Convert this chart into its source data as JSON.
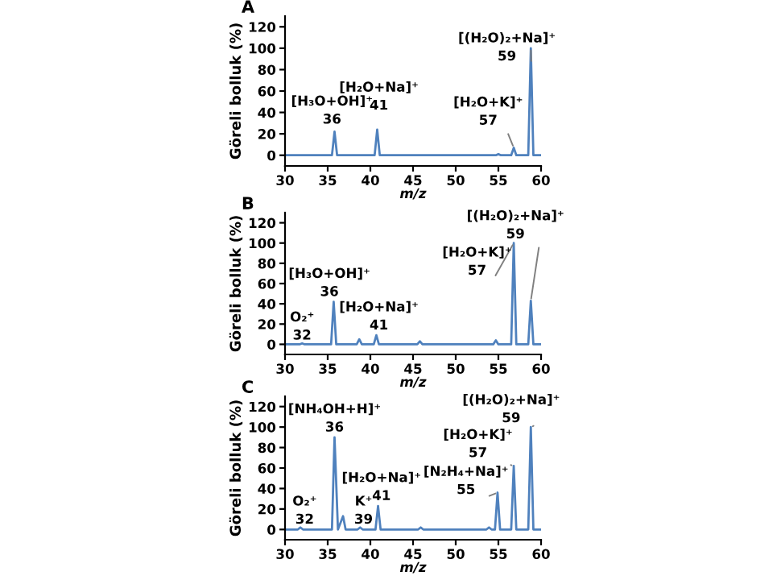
{
  "chart_data": [
    {
      "type": "line",
      "title": "A",
      "xlabel": "m/z",
      "ylabel": "Göreli bolluk (%)",
      "xlim": [
        30,
        60
      ],
      "ylim": [
        -10,
        130
      ],
      "xticks": [
        30,
        35,
        40,
        45,
        50,
        55,
        60
      ],
      "yticks": [
        0,
        20,
        40,
        60,
        80,
        100,
        120
      ],
      "grid": false,
      "legend": false,
      "marker": "none",
      "line_style": "solid",
      "series": [
        {
          "color": "#4f81bd",
          "x": [
            30,
            35.5,
            35.8,
            36.1,
            40.5,
            40.8,
            41.1,
            54.7,
            55,
            55.3,
            56.5,
            56.8,
            57.1,
            58.5,
            58.8,
            59.1,
            60
          ],
          "values": [
            0,
            0,
            22,
            0,
            0,
            24,
            0,
            0,
            1,
            0,
            0,
            7,
            0,
            0,
            100,
            0,
            0
          ]
        }
      ],
      "annotations": [
        {
          "text": "[H₃O+OH]⁺\n36",
          "x": 35.8,
          "y": 22
        },
        {
          "text": "[H₂O+Na]⁺\n41",
          "x": 40.8,
          "y": 24
        },
        {
          "text": "[H₂O+K]⁺\n57",
          "x": 56.8,
          "y": 7
        },
        {
          "text": "[(H₂O)₂+Na]⁺\n59",
          "x": 58.8,
          "y": 100
        }
      ]
    },
    {
      "type": "line",
      "title": "B",
      "xlabel": "m/z",
      "ylabel": "Göreli bolluk (%)",
      "xlim": [
        30,
        60
      ],
      "ylim": [
        -10,
        130
      ],
      "xticks": [
        30,
        35,
        40,
        45,
        50,
        55,
        60
      ],
      "yticks": [
        0,
        20,
        40,
        60,
        80,
        100,
        120
      ],
      "grid": false,
      "legend": false,
      "marker": "none",
      "line_style": "solid",
      "series": [
        {
          "color": "#4f81bd",
          "x": [
            30,
            31.7,
            32,
            32.3,
            35.4,
            35.7,
            36,
            38.4,
            38.7,
            39,
            40.4,
            40.7,
            41,
            45.5,
            45.8,
            46.1,
            54.4,
            54.7,
            55,
            56.5,
            56.8,
            57.1,
            58.5,
            58.8,
            59.1,
            60
          ],
          "values": [
            0,
            0,
            1,
            0,
            0,
            42,
            0,
            0,
            5,
            0,
            0,
            9,
            0,
            0,
            3,
            0,
            0,
            4,
            0,
            0,
            100,
            0,
            0,
            43,
            0,
            0
          ]
        }
      ],
      "annotations": [
        {
          "text": "O₂⁺\n32",
          "x": 32,
          "y": 1
        },
        {
          "text": "[H₃O+OH]⁺\n36",
          "x": 35.7,
          "y": 42
        },
        {
          "text": "[H₂O+Na]⁺\n41",
          "x": 40.7,
          "y": 9
        },
        {
          "text": "[H₂O+K]⁺\n57",
          "x": 56.8,
          "y": 100
        },
        {
          "text": "[(H₂O)₂+Na]⁺\n59",
          "x": 58.8,
          "y": 43
        }
      ]
    },
    {
      "type": "line",
      "title": "C",
      "xlabel": "m/z",
      "ylabel": "Göreli bolluk (%)",
      "xlim": [
        30,
        60
      ],
      "ylim": [
        -10,
        130
      ],
      "xticks": [
        30,
        35,
        40,
        45,
        50,
        55,
        60
      ],
      "yticks": [
        0,
        20,
        40,
        60,
        80,
        100,
        120
      ],
      "grid": false,
      "legend": false,
      "marker": "none",
      "line_style": "solid",
      "series": [
        {
          "color": "#4f81bd",
          "x": [
            30,
            31.5,
            31.8,
            32.1,
            35.5,
            35.8,
            36.2,
            36.8,
            37.1,
            38.5,
            38.8,
            39.1,
            40.6,
            40.9,
            41.2,
            45.6,
            45.9,
            46.2,
            53.6,
            53.9,
            54.2,
            54.6,
            54.9,
            55.2,
            56.5,
            56.8,
            57.1,
            58.5,
            58.8,
            59.1,
            60
          ],
          "values": [
            0,
            0,
            2,
            0,
            0,
            90,
            0,
            13,
            0,
            0,
            2,
            0,
            0,
            23,
            0,
            0,
            2,
            0,
            0,
            2,
            0,
            0,
            36,
            0,
            0,
            62,
            0,
            0,
            100,
            0,
            0
          ]
        }
      ],
      "annotations": [
        {
          "text": "O₂⁺\n32",
          "x": 31.8,
          "y": 2
        },
        {
          "text": "[NH₄OH+H]⁺\n36",
          "x": 35.8,
          "y": 90
        },
        {
          "text": "K⁺\n39",
          "x": 38.8,
          "y": 2
        },
        {
          "text": "[H₂O+Na]⁺\n41",
          "x": 40.9,
          "y": 23
        },
        {
          "text": "[N₂H₄+Na]⁺\n55",
          "x": 54.9,
          "y": 36
        },
        {
          "text": "[H₂O+K]⁺\n57",
          "x": 56.8,
          "y": 62
        },
        {
          "text": "[(H₂O)₂+Na]⁺\n59",
          "x": 58.8,
          "y": 100
        }
      ]
    }
  ]
}
